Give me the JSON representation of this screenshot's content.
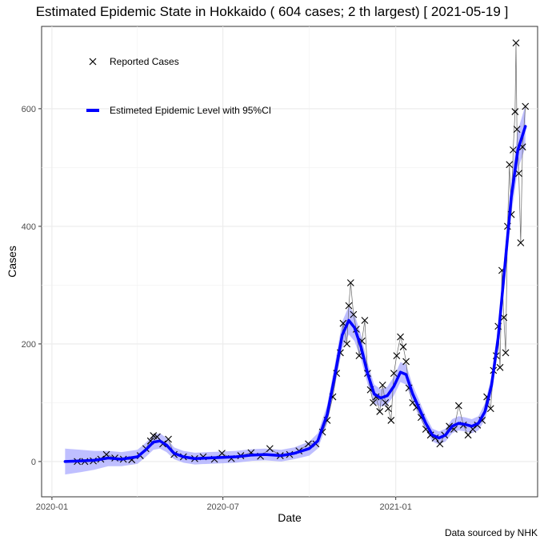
{
  "chart_data": {
    "type": "line",
    "title": "Estimated Epidemic State in Hokkaido  ( 604 cases; 2 th largest) [ 2021-05-19 ]",
    "xlabel": "Date",
    "ylabel": "Cases",
    "xticks": [
      "2020-01",
      "2020-07",
      "2021-01"
    ],
    "yticks": [
      0,
      200,
      400,
      600
    ],
    "xlim": [
      "2019-12-21",
      "2021-06-01"
    ],
    "ylim": [
      -60,
      740
    ],
    "grid": true,
    "legend_position": "top-left",
    "source": "Data sourced by NHK",
    "series": [
      {
        "name": "Reported Cases",
        "style": "markers",
        "marker": "x",
        "color": "#000000",
        "points": [
          [
            "2020-01-28",
            0
          ],
          [
            "2020-02-05",
            0
          ],
          [
            "2020-02-14",
            1
          ],
          [
            "2020-02-22",
            4
          ],
          [
            "2020-02-28",
            12
          ],
          [
            "2020-03-08",
            6
          ],
          [
            "2020-03-17",
            4
          ],
          [
            "2020-03-26",
            3
          ],
          [
            "2020-04-04",
            10
          ],
          [
            "2020-04-10",
            22
          ],
          [
            "2020-04-15",
            35
          ],
          [
            "2020-04-18",
            44
          ],
          [
            "2020-04-22",
            42
          ],
          [
            "2020-04-28",
            30
          ],
          [
            "2020-05-04",
            38
          ],
          [
            "2020-05-10",
            12
          ],
          [
            "2020-05-20",
            8
          ],
          [
            "2020-06-01",
            5
          ],
          [
            "2020-06-10",
            8
          ],
          [
            "2020-06-22",
            4
          ],
          [
            "2020-06-30",
            14
          ],
          [
            "2020-07-10",
            5
          ],
          [
            "2020-07-20",
            10
          ],
          [
            "2020-07-31",
            15
          ],
          [
            "2020-08-10",
            9
          ],
          [
            "2020-08-20",
            22
          ],
          [
            "2020-08-31",
            10
          ],
          [
            "2020-09-10",
            12
          ],
          [
            "2020-09-20",
            18
          ],
          [
            "2020-09-30",
            30
          ],
          [
            "2020-10-08",
            30
          ],
          [
            "2020-10-15",
            50
          ],
          [
            "2020-10-20",
            70
          ],
          [
            "2020-10-26",
            110
          ],
          [
            "2020-10-30",
            150
          ],
          [
            "2020-11-03",
            185
          ],
          [
            "2020-11-06",
            235
          ],
          [
            "2020-11-10",
            200
          ],
          [
            "2020-11-12",
            265
          ],
          [
            "2020-11-14",
            304
          ],
          [
            "2020-11-17",
            250
          ],
          [
            "2020-11-20",
            225
          ],
          [
            "2020-11-23",
            180
          ],
          [
            "2020-11-26",
            205
          ],
          [
            "2020-11-29",
            240
          ],
          [
            "2020-12-02",
            150
          ],
          [
            "2020-12-05",
            122
          ],
          [
            "2020-12-08",
            100
          ],
          [
            "2020-12-11",
            110
          ],
          [
            "2020-12-15",
            85
          ],
          [
            "2020-12-18",
            130
          ],
          [
            "2020-12-21",
            100
          ],
          [
            "2020-12-24",
            90
          ],
          [
            "2020-12-27",
            70
          ],
          [
            "2020-12-30",
            150
          ],
          [
            "2021-01-02",
            180
          ],
          [
            "2021-01-06",
            212
          ],
          [
            "2021-01-09",
            195
          ],
          [
            "2021-01-12",
            170
          ],
          [
            "2021-01-15",
            125
          ],
          [
            "2021-01-19",
            100
          ],
          [
            "2021-01-23",
            92
          ],
          [
            "2021-01-28",
            75
          ],
          [
            "2021-02-02",
            55
          ],
          [
            "2021-02-07",
            45
          ],
          [
            "2021-02-12",
            40
          ],
          [
            "2021-02-17",
            30
          ],
          [
            "2021-02-22",
            45
          ],
          [
            "2021-02-27",
            60
          ],
          [
            "2021-03-04",
            55
          ],
          [
            "2021-03-09",
            95
          ],
          [
            "2021-03-14",
            62
          ],
          [
            "2021-03-19",
            45
          ],
          [
            "2021-03-24",
            55
          ],
          [
            "2021-03-29",
            62
          ],
          [
            "2021-04-03",
            70
          ],
          [
            "2021-04-08",
            110
          ],
          [
            "2021-04-12",
            90
          ],
          [
            "2021-04-15",
            155
          ],
          [
            "2021-04-18",
            180
          ],
          [
            "2021-04-20",
            230
          ],
          [
            "2021-04-22",
            160
          ],
          [
            "2021-04-24",
            325
          ],
          [
            "2021-04-26",
            245
          ],
          [
            "2021-04-28",
            185
          ],
          [
            "2021-04-30",
            400
          ],
          [
            "2021-05-02",
            505
          ],
          [
            "2021-05-04",
            420
          ],
          [
            "2021-05-06",
            530
          ],
          [
            "2021-05-08",
            595
          ],
          [
            "2021-05-09",
            712
          ],
          [
            "2021-05-10",
            565
          ],
          [
            "2021-05-12",
            490
          ],
          [
            "2021-05-14",
            372
          ],
          [
            "2021-05-16",
            535
          ],
          [
            "2021-05-19",
            604
          ]
        ]
      },
      {
        "name": "Estimeted Epidemic Level with 95%CI",
        "style": "line_with_ci",
        "color": "#0000ff",
        "ci_color": "#a9a9ff",
        "points": [
          [
            "2020-01-15",
            0,
            -22,
            22
          ],
          [
            "2020-02-01",
            1,
            -18,
            20
          ],
          [
            "2020-02-15",
            2,
            -14,
            18
          ],
          [
            "2020-03-01",
            6,
            -8,
            18
          ],
          [
            "2020-03-15",
            4,
            -8,
            16
          ],
          [
            "2020-04-01",
            8,
            -4,
            20
          ],
          [
            "2020-04-10",
            20,
            8,
            32
          ],
          [
            "2020-04-18",
            33,
            20,
            46
          ],
          [
            "2020-04-25",
            35,
            22,
            48
          ],
          [
            "2020-05-02",
            28,
            16,
            40
          ],
          [
            "2020-05-10",
            14,
            4,
            24
          ],
          [
            "2020-05-20",
            8,
            -2,
            18
          ],
          [
            "2020-06-01",
            5,
            -5,
            15
          ],
          [
            "2020-06-15",
            6,
            -4,
            16
          ],
          [
            "2020-07-01",
            7,
            -3,
            17
          ],
          [
            "2020-07-15",
            8,
            -2,
            18
          ],
          [
            "2020-08-01",
            11,
            1,
            21
          ],
          [
            "2020-08-15",
            12,
            2,
            22
          ],
          [
            "2020-09-01",
            10,
            0,
            20
          ],
          [
            "2020-09-15",
            14,
            4,
            24
          ],
          [
            "2020-10-01",
            22,
            10,
            34
          ],
          [
            "2020-10-10",
            35,
            22,
            48
          ],
          [
            "2020-10-20",
            80,
            64,
            96
          ],
          [
            "2020-10-28",
            145,
            126,
            164
          ],
          [
            "2020-11-05",
            215,
            192,
            238
          ],
          [
            "2020-11-12",
            240,
            216,
            264
          ],
          [
            "2020-11-18",
            228,
            205,
            251
          ],
          [
            "2020-11-25",
            195,
            174,
            216
          ],
          [
            "2020-12-02",
            150,
            132,
            168
          ],
          [
            "2020-12-09",
            115,
            99,
            131
          ],
          [
            "2020-12-16",
            108,
            93,
            123
          ],
          [
            "2020-12-23",
            112,
            97,
            127
          ],
          [
            "2020-12-30",
            128,
            112,
            144
          ],
          [
            "2021-01-06",
            152,
            135,
            169
          ],
          [
            "2021-01-12",
            148,
            131,
            165
          ],
          [
            "2021-01-19",
            115,
            100,
            130
          ],
          [
            "2021-01-26",
            90,
            76,
            104
          ],
          [
            "2021-02-02",
            65,
            53,
            77
          ],
          [
            "2021-02-09",
            45,
            34,
            56
          ],
          [
            "2021-02-16",
            40,
            29,
            51
          ],
          [
            "2021-02-23",
            45,
            34,
            56
          ],
          [
            "2021-03-02",
            60,
            48,
            72
          ],
          [
            "2021-03-09",
            65,
            53,
            77
          ],
          [
            "2021-03-16",
            63,
            51,
            75
          ],
          [
            "2021-03-23",
            60,
            48,
            72
          ],
          [
            "2021-03-30",
            65,
            53,
            77
          ],
          [
            "2021-04-06",
            85,
            71,
            99
          ],
          [
            "2021-04-13",
            130,
            114,
            146
          ],
          [
            "2021-04-20",
            210,
            190,
            230
          ],
          [
            "2021-04-27",
            330,
            305,
            355
          ],
          [
            "2021-05-04",
            450,
            420,
            480
          ],
          [
            "2021-05-11",
            530,
            497,
            563
          ],
          [
            "2021-05-19",
            570,
            534,
            606
          ]
        ]
      }
    ]
  }
}
